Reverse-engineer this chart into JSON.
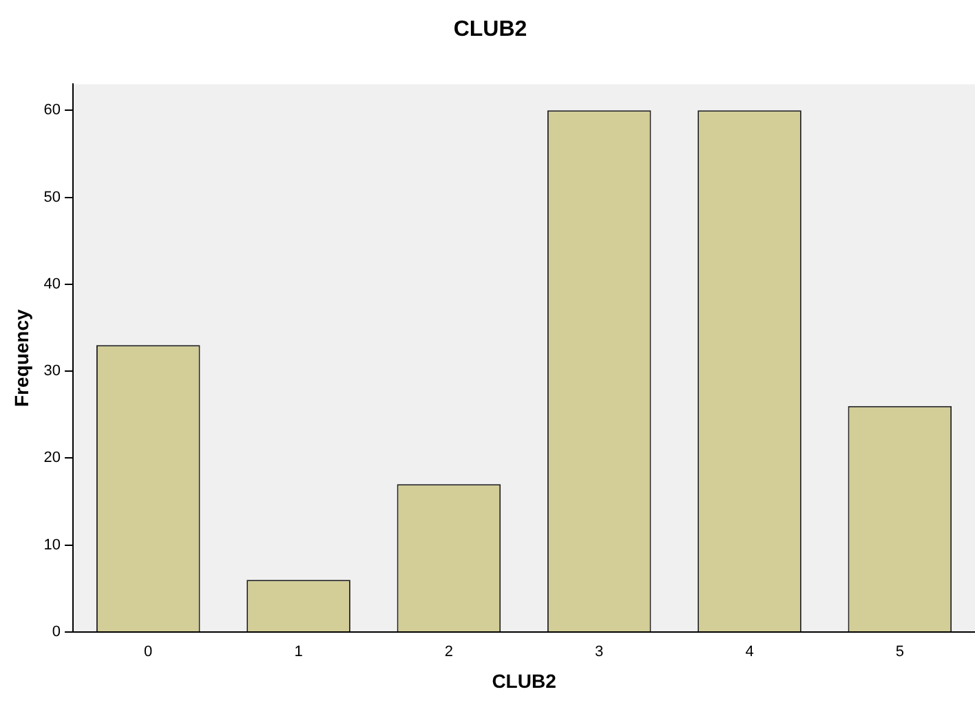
{
  "chart_data": {
    "type": "bar",
    "title": "CLUB2",
    "xlabel": "CLUB2",
    "ylabel": "Frequency",
    "categories": [
      "0",
      "1",
      "2",
      "3",
      "4",
      "5"
    ],
    "values": [
      33,
      6,
      17,
      60,
      60,
      26
    ],
    "color": "#d3ce97",
    "ylim": [
      0,
      63
    ],
    "yticks": [
      0,
      10,
      20,
      30,
      40,
      50,
      60
    ],
    "grid": false,
    "legend": false
  }
}
